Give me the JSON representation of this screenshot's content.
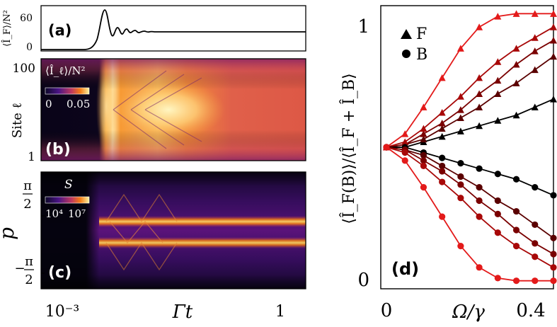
{
  "panel_a": {
    "label": "(a)",
    "ylabel": "⟨Î_F⟩/N²",
    "yticks": [
      "60",
      "0"
    ]
  },
  "panel_b": {
    "label": "(b)",
    "ylabel": "Site ℓ",
    "yticks": [
      "100",
      "1"
    ],
    "colorbar_title": "⟨Î_ℓ⟩/N²",
    "colorbar_min": "0",
    "colorbar_max": "0.05"
  },
  "panel_c": {
    "label": "(c)",
    "ylabel": "p",
    "yticks_top_num": "π",
    "yticks_top_den": "2",
    "yticks_bottom_sign": "−",
    "yticks_bottom_num": "π",
    "yticks_bottom_den": "2",
    "colorbar_title": "S",
    "colorbar_min": "10⁴",
    "colorbar_max": "10⁷"
  },
  "shared_x": {
    "xlabel": "Γt",
    "xtick_left": "10⁻³",
    "xtick_right": "1"
  },
  "panel_d": {
    "label": "(d)",
    "ylabel": "⟨Î_F(B)⟩/⟨Î_F + Î_B⟩",
    "xlabel": "Ω/γ",
    "xticks": [
      "0",
      "0.4"
    ],
    "yticks": [
      "1",
      "0"
    ],
    "legend": [
      {
        "marker": "triangle",
        "label": "F"
      },
      {
        "marker": "circle",
        "label": "B"
      }
    ]
  },
  "chart_data": {
    "type": "line",
    "xlabel": "Ω/γ",
    "ylabel": "⟨Î_F(B)⟩/⟨Î_F + Î_B⟩",
    "xlim": [
      0,
      0.45
    ],
    "ylim": [
      -0.03,
      1.03
    ],
    "x": [
      0,
      0.05,
      0.1,
      0.15,
      0.2,
      0.25,
      0.3,
      0.35,
      0.4,
      0.45
    ],
    "series": [
      {
        "color": "#000000",
        "values": [
          0.5,
          0.5,
          0.52,
          0.54,
          0.56,
          0.58,
          0.6,
          0.62,
          0.65,
          0.68
        ]
      },
      {
        "color": "#5a0000",
        "values": [
          0.5,
          0.51,
          0.53,
          0.57,
          0.61,
          0.65,
          0.7,
          0.74,
          0.79,
          0.84
        ]
      },
      {
        "color": "#7a0000",
        "values": [
          0.5,
          0.51,
          0.55,
          0.59,
          0.64,
          0.7,
          0.75,
          0.81,
          0.86,
          0.9
        ]
      },
      {
        "color": "#a80808",
        "values": [
          0.5,
          0.52,
          0.57,
          0.63,
          0.69,
          0.76,
          0.82,
          0.87,
          0.91,
          0.95
        ]
      },
      {
        "color": "#e31a1a",
        "values": [
          0.5,
          0.55,
          0.65,
          0.76,
          0.87,
          0.95,
          0.99,
          1.0,
          1.0,
          1.0
        ]
      },
      {
        "color": "#000000",
        "values": [
          0.5,
          0.5,
          0.48,
          0.46,
          0.44,
          0.42,
          0.4,
          0.38,
          0.35,
          0.32
        ]
      },
      {
        "color": "#5a0000",
        "values": [
          0.5,
          0.49,
          0.47,
          0.43,
          0.39,
          0.35,
          0.3,
          0.26,
          0.21,
          0.16
        ]
      },
      {
        "color": "#7a0000",
        "values": [
          0.5,
          0.49,
          0.45,
          0.41,
          0.36,
          0.3,
          0.25,
          0.19,
          0.14,
          0.1
        ]
      },
      {
        "color": "#a80808",
        "values": [
          0.5,
          0.48,
          0.43,
          0.37,
          0.31,
          0.24,
          0.18,
          0.13,
          0.09,
          0.05
        ]
      },
      {
        "color": "#e31a1a",
        "values": [
          0.5,
          0.45,
          0.35,
          0.24,
          0.13,
          0.05,
          0.01,
          0.0,
          0.0,
          0.0
        ]
      }
    ],
    "markers": {
      "F": "triangle",
      "B": "circle"
    }
  }
}
